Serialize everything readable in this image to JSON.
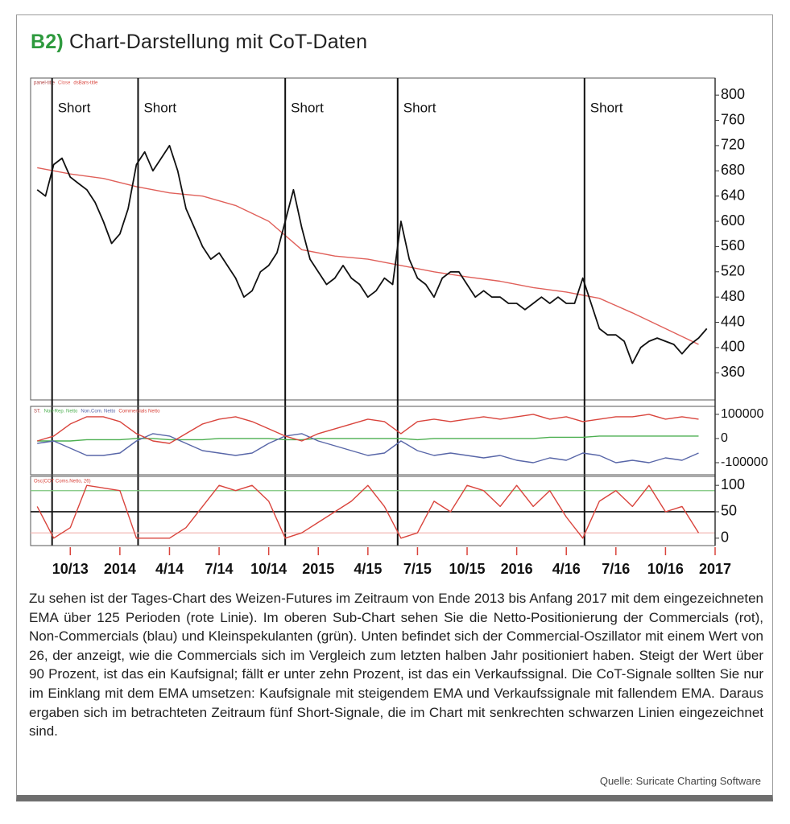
{
  "figure": {
    "label": "B2)",
    "title": "Chart-Darstellung mit CoT-Daten",
    "caption": "Zu sehen ist der Tages-Chart des Weizen-Futures im Zeitraum von Ende 2013 bis Anfang 2017 mit dem eingezeichneten EMA über 125 Perioden (rote Linie). Im oberen Sub-Chart sehen Sie die Netto-Positionierung der Commercials (rot), Non-Commercials (blau) und Kleinspekulanten (grün). Unten befindet sich der Commercial-Oszillator mit einem Wert von 26, der anzeigt, wie die Commercials sich im Vergleich zum letzten halben Jahr positioniert haben. Steigt der Wert über 90 Prozent, ist das ein Kaufsignal; fällt er unter zehn Prozent, ist das ein Verkaufssignal. Die CoT-Signale sollten Sie nur im Einklang mit dem EMA umsetzen: Kaufsignale mit steigendem EMA und Verkaufssignale mit fallendem EMA. Daraus ergaben sich im betrachteten Zeitraum fünf Short-Signale, die im Chart mit senkrechten schwarzen Linien eingezeichnet sind.",
    "source": "Quelle: Suricate Charting Software"
  },
  "chart_data": [
    {
      "type": "line",
      "panel_title": "panel-title",
      "xlim": [
        -2.4,
        39
      ],
      "ylim": [
        317,
        827
      ],
      "yticks": [
        360,
        400,
        440,
        480,
        520,
        560,
        600,
        640,
        680,
        720,
        760,
        800
      ],
      "annotations": [
        {
          "x": -1.1,
          "label": "Short"
        },
        {
          "x": 4.1,
          "label": "Short"
        },
        {
          "x": 13.0,
          "label": "Short"
        },
        {
          "x": 19.8,
          "label": "Short"
        },
        {
          "x": 31.1,
          "label": "Short"
        }
      ],
      "series": [
        {
          "name": "Close",
          "color": "#e0605a",
          "x": [
            -2,
            0,
            2,
            4,
            6,
            8,
            10,
            12,
            14,
            16,
            18,
            20,
            22,
            24,
            26,
            28,
            30,
            32,
            34,
            36,
            38
          ],
          "values": [
            685,
            675,
            668,
            655,
            645,
            640,
            625,
            600,
            555,
            545,
            540,
            530,
            520,
            512,
            505,
            495,
            488,
            478,
            455,
            430,
            405
          ]
        },
        {
          "name": "dsBars-title",
          "color": "#111111",
          "x": [
            -2,
            -1.5,
            -1,
            -0.5,
            0,
            0.5,
            1,
            1.5,
            2,
            2.5,
            3,
            3.5,
            4,
            4.5,
            5,
            5.5,
            6,
            6.5,
            7,
            7.5,
            8,
            8.5,
            9,
            9.5,
            10,
            10.5,
            11,
            11.5,
            12,
            12.5,
            13,
            13.5,
            14,
            14.5,
            15,
            15.5,
            16,
            16.5,
            17,
            17.5,
            18,
            18.5,
            19,
            19.5,
            20,
            20.5,
            21,
            21.5,
            22,
            22.5,
            23,
            23.5,
            24,
            24.5,
            25,
            25.5,
            26,
            26.5,
            27,
            27.5,
            28,
            28.5,
            29,
            29.5,
            30,
            30.5,
            31,
            31.5,
            32,
            32.5,
            33,
            33.5,
            34,
            34.5,
            35,
            35.5,
            36,
            36.5,
            37,
            37.5,
            38,
            38.5
          ],
          "values": [
            650,
            640,
            690,
            700,
            670,
            660,
            650,
            630,
            600,
            565,
            580,
            620,
            690,
            710,
            680,
            700,
            720,
            680,
            620,
            590,
            560,
            540,
            550,
            530,
            510,
            480,
            490,
            520,
            530,
            550,
            600,
            650,
            590,
            540,
            520,
            500,
            510,
            530,
            510,
            500,
            480,
            490,
            510,
            500,
            600,
            540,
            510,
            500,
            480,
            510,
            520,
            520,
            500,
            480,
            490,
            480,
            480,
            470,
            470,
            460,
            470,
            480,
            470,
            480,
            470,
            470,
            510,
            470,
            430,
            420,
            420,
            410,
            375,
            400,
            410,
            415,
            410,
            405,
            390,
            405,
            415,
            430
          ]
        }
      ]
    },
    {
      "type": "line",
      "panel_title": "ST.",
      "xlim": [
        -2.4,
        39
      ],
      "ylim": [
        -150000,
        133000
      ],
      "yticks": [
        100000,
        0,
        -100000
      ],
      "x": [
        -2,
        -1,
        0,
        1,
        2,
        3,
        4,
        5,
        6,
        7,
        8,
        9,
        10,
        11,
        12,
        13,
        14,
        15,
        16,
        17,
        18,
        19,
        20,
        21,
        22,
        23,
        24,
        25,
        26,
        27,
        28,
        29,
        30,
        31,
        32,
        33,
        34,
        35,
        36,
        37,
        38
      ],
      "series": [
        {
          "name": "Non-Rep. Netto",
          "color": "#4caf50",
          "values": [
            -10000,
            -10000,
            -10000,
            -5000,
            -5000,
            -5000,
            0,
            0,
            -5000,
            -5000,
            -5000,
            0,
            0,
            0,
            0,
            -5000,
            -5000,
            0,
            0,
            0,
            0,
            0,
            0,
            -5000,
            0,
            0,
            0,
            0,
            0,
            0,
            0,
            5000,
            5000,
            5000,
            10000,
            10000,
            10000,
            10000,
            10000,
            10000,
            10000
          ]
        },
        {
          "name": "Non.Com. Netto",
          "color": "#5866a8",
          "values": [
            -20000,
            -10000,
            -40000,
            -70000,
            -70000,
            -60000,
            -10000,
            20000,
            10000,
            -20000,
            -50000,
            -60000,
            -70000,
            -60000,
            -20000,
            10000,
            20000,
            -10000,
            -30000,
            -50000,
            -70000,
            -60000,
            -10000,
            -50000,
            -70000,
            -60000,
            -70000,
            -80000,
            -70000,
            -90000,
            -100000,
            -80000,
            -90000,
            -60000,
            -70000,
            -100000,
            -90000,
            -100000,
            -80000,
            -90000,
            -60000
          ]
        },
        {
          "name": "Commercials Netto",
          "color": "#d9443c",
          "values": [
            -10000,
            10000,
            60000,
            90000,
            90000,
            70000,
            20000,
            -10000,
            -20000,
            20000,
            60000,
            80000,
            90000,
            70000,
            40000,
            10000,
            -10000,
            20000,
            40000,
            60000,
            80000,
            70000,
            20000,
            70000,
            80000,
            70000,
            80000,
            90000,
            80000,
            90000,
            100000,
            80000,
            90000,
            70000,
            80000,
            90000,
            90000,
            100000,
            80000,
            90000,
            80000
          ]
        }
      ]
    },
    {
      "type": "line",
      "xlim": [
        -2.4,
        39
      ],
      "ylim": [
        -14,
        117
      ],
      "yticks": [
        0,
        50,
        100
      ],
      "hlines": [
        {
          "value": 90,
          "color": "#7cc47c"
        },
        {
          "value": 50,
          "color": "#111111"
        },
        {
          "value": 10,
          "color": "#f2b8b5"
        }
      ],
      "x": [
        -2,
        -1,
        0,
        1,
        2,
        3,
        4,
        5,
        6,
        7,
        8,
        9,
        10,
        11,
        12,
        13,
        14,
        15,
        16,
        17,
        18,
        19,
        20,
        21,
        22,
        23,
        24,
        25,
        26,
        27,
        28,
        29,
        30,
        31,
        32,
        33,
        34,
        35,
        36,
        37,
        38
      ],
      "series": [
        {
          "name": "Osc(COT Coms.Netto, 26)",
          "color": "#d9443c",
          "values": [
            60,
            0,
            20,
            100,
            95,
            90,
            0,
            0,
            0,
            20,
            60,
            100,
            90,
            100,
            70,
            0,
            10,
            30,
            50,
            70,
            100,
            60,
            0,
            10,
            70,
            50,
            100,
            90,
            60,
            100,
            60,
            90,
            40,
            0,
            70,
            90,
            60,
            100,
            50,
            60,
            10
          ]
        }
      ],
      "xticks": [
        {
          "value": 0,
          "label": "10/13"
        },
        {
          "value": 3,
          "label": "2014"
        },
        {
          "value": 6,
          "label": "4/14"
        },
        {
          "value": 9,
          "label": "7/14"
        },
        {
          "value": 12,
          "label": "10/14"
        },
        {
          "value": 15,
          "label": "2015"
        },
        {
          "value": 18,
          "label": "4/15"
        },
        {
          "value": 21,
          "label": "7/15"
        },
        {
          "value": 24,
          "label": "10/15"
        },
        {
          "value": 27,
          "label": "2016"
        },
        {
          "value": 30,
          "label": "4/16"
        },
        {
          "value": 33,
          "label": "7/16"
        },
        {
          "value": 36,
          "label": "10/16"
        },
        {
          "value": 39,
          "label": "2017"
        }
      ]
    }
  ]
}
